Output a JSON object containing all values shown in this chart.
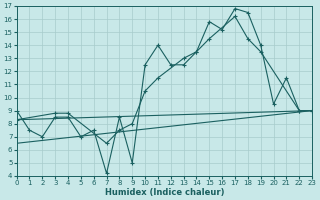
{
  "xlabel": "Humidex (Indice chaleur)",
  "bg_color": "#c8e8e8",
  "grid_color": "#a8cccc",
  "line_color": "#1a6060",
  "xlim": [
    0,
    23
  ],
  "ylim": [
    4,
    17
  ],
  "xticks": [
    0,
    1,
    2,
    3,
    4,
    5,
    6,
    7,
    8,
    9,
    10,
    11,
    12,
    13,
    14,
    15,
    16,
    17,
    18,
    19,
    20,
    21,
    22,
    23
  ],
  "yticks": [
    4,
    5,
    6,
    7,
    8,
    9,
    10,
    11,
    12,
    13,
    14,
    15,
    16,
    17
  ],
  "line1_x": [
    0,
    1,
    2,
    3,
    4,
    5,
    6,
    7,
    8,
    9,
    10,
    11,
    12,
    13,
    14,
    15,
    16,
    17,
    18,
    19,
    20,
    21,
    22,
    23
  ],
  "line1_y": [
    9.0,
    7.5,
    7.0,
    8.5,
    8.5,
    7.0,
    7.5,
    4.2,
    8.5,
    5.0,
    12.5,
    14.0,
    12.5,
    12.5,
    13.5,
    15.8,
    15.2,
    16.8,
    16.5,
    14.0,
    9.5,
    11.5,
    9.0,
    9.0
  ],
  "line2_x": [
    0,
    3,
    4,
    7,
    8,
    9,
    10,
    11,
    13,
    14,
    15,
    17,
    18,
    19,
    22,
    23
  ],
  "line2_y": [
    8.3,
    8.8,
    8.8,
    6.5,
    7.5,
    8.0,
    10.5,
    11.5,
    13.0,
    13.5,
    14.5,
    16.2,
    14.5,
    13.5,
    9.0,
    9.0
  ],
  "line3_x": [
    0,
    23
  ],
  "line3_y": [
    6.5,
    9.0
  ],
  "line4_x": [
    0,
    23
  ],
  "line4_y": [
    8.3,
    9.0
  ]
}
